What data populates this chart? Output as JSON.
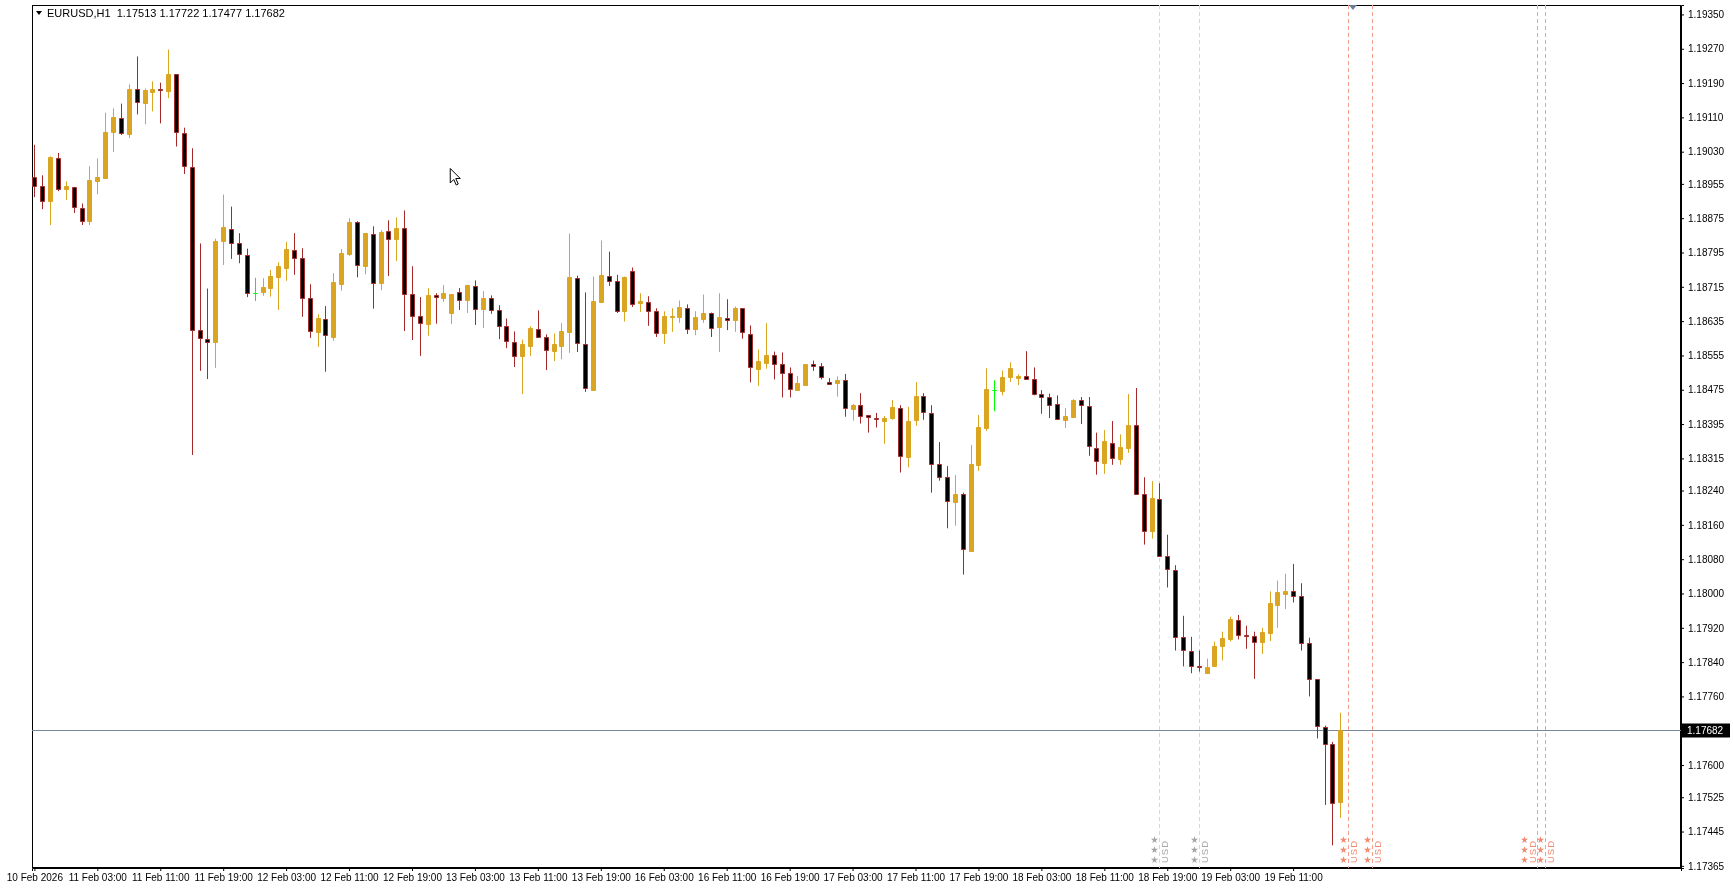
{
  "chart_data": {
    "type": "candlestick",
    "title": "EURUSD,H1  1.17513 1.17722 1.17477 1.17682",
    "categories": [
      "10 Feb 2026",
      null,
      null,
      null,
      null,
      null,
      null,
      null,
      "11 Feb 03:00",
      null,
      null,
      null,
      null,
      null,
      null,
      null,
      "11 Feb 11:00",
      null,
      null,
      null,
      null,
      null,
      null,
      null,
      "11 Feb 19:00",
      null,
      null,
      null,
      null,
      null,
      null,
      null,
      "12 Feb 03:00",
      null,
      null,
      null,
      null,
      null,
      null,
      null,
      "12 Feb 11:00",
      null,
      null,
      null,
      null,
      null,
      null,
      null,
      "12 Feb 19:00",
      null,
      null,
      null,
      null,
      null,
      null,
      null,
      "13 Feb 03:00",
      null,
      null,
      null,
      null,
      null,
      null,
      null,
      "13 Feb 11:00",
      null,
      null,
      null,
      null,
      null,
      null,
      null,
      "13 Feb 19:00",
      null,
      null,
      null,
      null,
      null,
      null,
      null,
      "16 Feb 03:00",
      null,
      null,
      null,
      null,
      null,
      null,
      null,
      "16 Feb 11:00",
      null,
      null,
      null,
      null,
      null,
      null,
      null,
      "16 Feb 19:00",
      null,
      null,
      null,
      null,
      null,
      null,
      null,
      "17 Feb 03:00",
      null,
      null,
      null,
      null,
      null,
      null,
      null,
      "17 Feb 11:00",
      null,
      null,
      null,
      null,
      null,
      null,
      null,
      "17 Feb 19:00",
      null,
      null,
      null,
      null,
      null,
      null,
      null,
      "18 Feb 03:00",
      null,
      null,
      null,
      null,
      null,
      null,
      null,
      "18 Feb 11:00",
      null,
      null,
      null,
      null,
      null,
      null,
      null,
      "18 Feb 19:00",
      null,
      null,
      null,
      null,
      null,
      null,
      null,
      "19 Feb 03:00",
      null,
      null,
      null,
      null,
      null,
      null,
      null,
      "19 Feb 11:00",
      null,
      null,
      null,
      null,
      null,
      null,
      null,
      null,
      null,
      null,
      null,
      null,
      null,
      null,
      null,
      null,
      null,
      null,
      null,
      null,
      null,
      null,
      null,
      null,
      null,
      null,
      null,
      null,
      null,
      null,
      null,
      null,
      null,
      null,
      null,
      null,
      null,
      null,
      null,
      null,
      null,
      null,
      null,
      null,
      null,
      null,
      null,
      null,
      null
    ],
    "ohlc": [
      [
        1.18971,
        1.19046,
        1.18924,
        1.18951
      ],
      [
        1.18951,
        1.18975,
        1.18896,
        1.18916
      ],
      [
        1.18915,
        1.19019,
        1.18859,
        1.19017
      ],
      [
        1.19016,
        1.19027,
        1.18938,
        1.18943
      ],
      [
        1.18943,
        1.18961,
        1.18917,
        1.18951
      ],
      [
        1.18948,
        1.18948,
        1.18887,
        1.18902
      ],
      [
        1.18899,
        1.18909,
        1.18859,
        1.18869
      ],
      [
        1.18868,
        1.18996,
        1.18859,
        1.18963
      ],
      [
        1.18961,
        1.19014,
        1.18931,
        1.1897
      ],
      [
        1.18968,
        1.19121,
        1.18968,
        1.19077
      ],
      [
        1.19075,
        1.19131,
        1.19029,
        1.1911
      ],
      [
        1.19109,
        1.19142,
        1.19069,
        1.19074
      ],
      [
        1.19072,
        1.19187,
        1.19062,
        1.19177
      ],
      [
        1.19176,
        1.19252,
        1.19117,
        1.19145
      ],
      [
        1.19143,
        1.19177,
        1.19094,
        1.19173
      ],
      [
        1.19169,
        1.19194,
        1.19124,
        1.19177
      ],
      [
        1.19176,
        1.19191,
        1.19096,
        1.19174
      ],
      [
        1.19171,
        1.19268,
        1.19155,
        1.19212
      ],
      [
        1.19211,
        1.19211,
        1.19042,
        1.19076
      ],
      [
        1.19074,
        1.19086,
        1.18978,
        1.18996
      ],
      [
        1.18995,
        1.19038,
        1.18323,
        1.18615
      ],
      [
        1.18615,
        1.18816,
        1.18519,
        1.18596
      ],
      [
        1.18594,
        1.18711,
        1.185,
        1.18586
      ],
      [
        1.18586,
        1.18827,
        1.18526,
        1.18821
      ],
      [
        1.18821,
        1.1893,
        1.18766,
        1.18854
      ],
      [
        1.1885,
        1.18902,
        1.1878,
        1.18818
      ],
      [
        1.18816,
        1.1884,
        1.1877,
        1.18791
      ],
      [
        1.1879,
        1.18804,
        1.18691,
        1.18701
      ],
      [
        1.18701,
        1.18736,
        1.18682,
        1.18701
      ],
      [
        1.18703,
        1.18735,
        1.18694,
        1.18714
      ],
      [
        1.18713,
        1.18754,
        1.18692,
        1.1874
      ],
      [
        1.18738,
        1.18772,
        1.18661,
        1.18763
      ],
      [
        1.18759,
        1.1882,
        1.18729,
        1.18803
      ],
      [
        1.188,
        1.1884,
        1.18743,
        1.18781
      ],
      [
        1.18783,
        1.18805,
        1.18645,
        1.1869
      ],
      [
        1.1869,
        1.18721,
        1.18596,
        1.18613
      ],
      [
        1.1861,
        1.18651,
        1.18575,
        1.18642
      ],
      [
        1.18641,
        1.1867,
        1.18517,
        1.18602
      ],
      [
        1.18598,
        1.18747,
        1.18589,
        1.18726
      ],
      [
        1.18722,
        1.18803,
        1.18706,
        1.18793
      ],
      [
        1.18792,
        1.18875,
        1.18787,
        1.18865
      ],
      [
        1.18865,
        1.18868,
        1.18737,
        1.18767
      ],
      [
        1.18763,
        1.1884,
        1.18744,
        1.1884
      ],
      [
        1.18837,
        1.18856,
        1.18664,
        1.18725
      ],
      [
        1.18724,
        1.18847,
        1.18707,
        1.18842
      ],
      [
        1.18844,
        1.1887,
        1.1874,
        1.18827
      ],
      [
        1.18826,
        1.18877,
        1.18775,
        1.18852
      ],
      [
        1.18851,
        1.18893,
        1.18612,
        1.18699
      ],
      [
        1.18699,
        1.18763,
        1.18591,
        1.18646
      ],
      [
        1.18648,
        1.18691,
        1.18554,
        1.1863
      ],
      [
        1.18629,
        1.18712,
        1.18601,
        1.18695
      ],
      [
        1.18695,
        1.187,
        1.18629,
        1.18691
      ],
      [
        1.18689,
        1.18719,
        1.1868,
        1.187
      ],
      [
        1.18654,
        1.18698,
        1.18628,
        1.18698
      ],
      [
        1.18702,
        1.18712,
        1.18661,
        1.18685
      ],
      [
        1.18685,
        1.18719,
        1.18654,
        1.18719
      ],
      [
        1.18718,
        1.1873,
        1.18626,
        1.18664
      ],
      [
        1.18664,
        1.18705,
        1.18619,
        1.18688
      ],
      [
        1.18688,
        1.18695,
        1.18652,
        1.18662
      ],
      [
        1.18662,
        1.18672,
        1.18593,
        1.18624
      ],
      [
        1.18624,
        1.18641,
        1.18572,
        1.18589
      ],
      [
        1.18587,
        1.18611,
        1.18528,
        1.18554
      ],
      [
        1.18554,
        1.18592,
        1.18465,
        1.18581
      ],
      [
        1.18577,
        1.18623,
        1.18554,
        1.1862
      ],
      [
        1.18617,
        1.1866,
        1.18596,
        1.18599
      ],
      [
        1.18599,
        1.18604,
        1.18521,
        1.18568
      ],
      [
        1.18565,
        1.18606,
        1.18542,
        1.18581
      ],
      [
        1.18577,
        1.1863,
        1.18546,
        1.18613
      ],
      [
        1.1861,
        1.18839,
        1.18561,
        1.18737
      ],
      [
        1.18736,
        1.18741,
        1.18563,
        1.18585
      ],
      [
        1.18582,
        1.18702,
        1.1847,
        1.18478
      ],
      [
        1.18475,
        1.18739,
        1.18475,
        1.18683
      ],
      [
        1.18679,
        1.18823,
        1.18677,
        1.18743
      ],
      [
        1.18741,
        1.18797,
        1.18717,
        1.18729
      ],
      [
        1.18729,
        1.18743,
        1.18654,
        1.18659
      ],
      [
        1.18658,
        1.18739,
        1.18634,
        1.18739
      ],
      [
        1.18752,
        1.1876,
        1.18668,
        1.18676
      ],
      [
        1.18677,
        1.187,
        1.18656,
        1.18681
      ],
      [
        1.1868,
        1.18693,
        1.18624,
        1.18659
      ],
      [
        1.18659,
        1.18665,
        1.18598,
        1.18608
      ],
      [
        1.18607,
        1.18658,
        1.18582,
        1.18648
      ],
      [
        1.18645,
        1.18665,
        1.1861,
        1.18648
      ],
      [
        1.18645,
        1.18683,
        1.18631,
        1.18667
      ],
      [
        1.18666,
        1.18674,
        1.18605,
        1.18617
      ],
      [
        1.18617,
        1.18658,
        1.18602,
        1.18644
      ],
      [
        1.1864,
        1.18697,
        1.18631,
        1.18655
      ],
      [
        1.18655,
        1.18655,
        1.18598,
        1.1862
      ],
      [
        1.18621,
        1.187,
        1.18563,
        1.18644
      ],
      [
        1.18643,
        1.18686,
        1.18614,
        1.18638
      ],
      [
        1.18637,
        1.18669,
        1.1861,
        1.18665
      ],
      [
        1.18665,
        1.18665,
        1.18594,
        1.18609
      ],
      [
        1.18606,
        1.18625,
        1.18492,
        1.18527
      ],
      [
        1.18524,
        1.18569,
        1.18484,
        1.18541
      ],
      [
        1.18538,
        1.1863,
        1.18524,
        1.18555
      ],
      [
        1.18555,
        1.18564,
        1.18499,
        1.18534
      ],
      [
        1.18534,
        1.18562,
        1.18457,
        1.18513
      ],
      [
        1.18513,
        1.18527,
        1.18457,
        1.18476
      ],
      [
        1.18475,
        1.18507,
        1.18475,
        1.1849
      ],
      [
        1.18487,
        1.18535,
        1.18484,
        1.18535
      ],
      [
        1.18534,
        1.18543,
        1.18519,
        1.1853
      ],
      [
        1.1853,
        1.18537,
        1.18499,
        1.18504
      ],
      [
        1.18493,
        1.18502,
        1.18489,
        1.18489
      ],
      [
        1.18491,
        1.18506,
        1.18459,
        1.18498
      ],
      [
        1.18497,
        1.18512,
        1.18412,
        1.18432
      ],
      [
        1.18429,
        1.18442,
        1.18403,
        1.18439
      ],
      [
        1.18439,
        1.18467,
        1.18396,
        1.18413
      ],
      [
        1.18415,
        1.18415,
        1.18375,
        1.18411
      ],
      [
        1.18409,
        1.18421,
        1.18387,
        1.18406
      ],
      [
        1.18403,
        1.18414,
        1.18349,
        1.18409
      ],
      [
        1.18408,
        1.18451,
        1.18405,
        1.18434
      ],
      [
        1.18432,
        1.18439,
        1.18282,
        1.1832
      ],
      [
        1.18319,
        1.18435,
        1.18294,
        1.18402
      ],
      [
        1.18405,
        1.18493,
        1.18391,
        1.1846
      ],
      [
        1.1846,
        1.18467,
        1.18405,
        1.18422
      ],
      [
        1.1842,
        1.18439,
        1.18235,
        1.18301
      ],
      [
        1.18301,
        1.18353,
        1.18263,
        1.18271
      ],
      [
        1.18271,
        1.18297,
        1.18152,
        1.18215
      ],
      [
        1.18214,
        1.18276,
        1.18158,
        1.18232
      ],
      [
        1.18231,
        1.18235,
        1.18044,
        1.18103
      ],
      [
        1.181,
        1.18346,
        1.18098,
        1.18302
      ],
      [
        1.183,
        1.18416,
        1.18286,
        1.18388
      ],
      [
        1.18386,
        1.18525,
        1.18379,
        1.18476
      ],
      [
        1.18475,
        1.18497,
        1.18425,
        1.18475
      ],
      [
        1.18472,
        1.1852,
        1.18462,
        1.18504
      ],
      [
        1.18505,
        1.18539,
        1.18493,
        1.18525
      ],
      [
        1.18503,
        1.18511,
        1.18486,
        1.18507
      ],
      [
        1.18508,
        1.18565,
        1.18499,
        1.18499
      ],
      [
        1.18499,
        1.18527,
        1.18462,
        1.18466
      ],
      [
        1.18466,
        1.18474,
        1.18419,
        1.18457
      ],
      [
        1.18457,
        1.18466,
        1.18409,
        1.1844
      ],
      [
        1.18441,
        1.18462,
        1.18406,
        1.18406
      ],
      [
        1.18405,
        1.18432,
        1.18386,
        1.18413
      ],
      [
        1.18412,
        1.18453,
        1.18409,
        1.18451
      ],
      [
        1.18452,
        1.18458,
        1.18395,
        1.1844
      ],
      [
        1.18438,
        1.18458,
        1.18321,
        1.18343
      ],
      [
        1.1834,
        1.18375,
        1.18277,
        1.18308
      ],
      [
        1.18305,
        1.18381,
        1.18279,
        1.18355
      ],
      [
        1.18352,
        1.18402,
        1.183,
        1.18317
      ],
      [
        1.18314,
        1.18371,
        1.183,
        1.18341
      ],
      [
        1.1834,
        1.18465,
        1.18328,
        1.18392
      ],
      [
        1.18392,
        1.18479,
        1.18231,
        1.18231
      ],
      [
        1.18231,
        1.18271,
        1.18114,
        1.18145
      ],
      [
        1.18145,
        1.18262,
        1.18128,
        1.18222
      ],
      [
        1.1822,
        1.18257,
        1.18086,
        1.18088
      ],
      [
        1.18087,
        1.18137,
        1.18014,
        1.18057
      ],
      [
        1.18054,
        1.18066,
        1.17867,
        1.17898
      ],
      [
        1.17898,
        1.17948,
        1.1783,
        1.17868
      ],
      [
        1.17865,
        1.17899,
        1.17814,
        1.17831
      ],
      [
        1.17831,
        1.17867,
        1.17818,
        1.17828
      ],
      [
        1.17814,
        1.17848,
        1.17814,
        1.17828
      ],
      [
        1.1783,
        1.17888,
        1.1783,
        1.17878
      ],
      [
        1.17877,
        1.17911,
        1.17844,
        1.17897
      ],
      [
        1.17895,
        1.17946,
        1.17888,
        1.17941
      ],
      [
        1.17938,
        1.1795,
        1.17893,
        1.17903
      ],
      [
        1.17904,
        1.17925,
        1.17871,
        1.17902
      ],
      [
        1.17902,
        1.17911,
        1.17801,
        1.17888
      ],
      [
        1.17888,
        1.1792,
        1.17859,
        1.17911
      ],
      [
        1.17909,
        1.18005,
        1.17889,
        1.17978
      ],
      [
        1.17974,
        1.1803,
        1.1792,
        1.18004
      ],
      [
        1.17998,
        1.18046,
        1.17964,
        1.18006
      ],
      [
        1.18006,
        1.18069,
        1.17979,
        1.17993
      ],
      [
        1.17994,
        1.18024,
        1.17867,
        1.17884
      ],
      [
        1.17884,
        1.17897,
        1.1776,
        1.178
      ],
      [
        1.178,
        1.178,
        1.17662,
        1.1769
      ],
      [
        1.17689,
        1.17692,
        1.17507,
        1.17649
      ],
      [
        1.17649,
        1.17654,
        1.17413,
        1.17512
      ],
      [
        1.17513,
        1.17722,
        1.17477,
        1.17682
      ],
      null,
      null,
      null,
      null,
      null,
      null,
      null,
      null,
      null,
      null,
      null,
      null,
      null,
      null,
      null,
      null,
      null,
      null,
      null,
      null,
      null,
      null,
      null,
      null,
      null,
      null,
      null,
      null,
      null,
      null,
      null,
      null,
      null,
      null,
      null,
      null,
      null,
      null,
      null,
      null,
      null,
      null,
      null
    ],
    "colors": [
      "#000000",
      "#000000",
      "#daa520",
      "#000000",
      "#daa520",
      "#000000",
      "#000000",
      "#daa520",
      "#daa520",
      "#daa520",
      "#daa520",
      "#000000",
      "#daa520",
      "#000000",
      "#daa520",
      "#daa520",
      "#000000",
      "#daa520",
      "#000000",
      "#000000",
      "#000000",
      "#000000",
      "#000000",
      "#daa520",
      "#daa520",
      "#000000",
      "#000000",
      "#000000",
      "#00ff00",
      "#daa520",
      "#daa520",
      "#daa520",
      "#daa520",
      "#000000",
      "#000000",
      "#000000",
      "#daa520",
      "#000000",
      "#daa520",
      "#daa520",
      "#daa520",
      "#000000",
      "#daa520",
      "#000000",
      "#daa520",
      "#000000",
      "#daa520",
      "#000000",
      "#000000",
      "#000000",
      "#daa520",
      "#000000",
      "#daa520",
      "#daa520",
      "#000000",
      "#daa520",
      "#000000",
      "#daa520",
      "#000000",
      "#000000",
      "#000000",
      "#000000",
      "#daa520",
      "#daa520",
      "#000000",
      "#000000",
      "#daa520",
      "#daa520",
      "#daa520",
      "#000000",
      "#000000",
      "#daa520",
      "#daa520",
      "#000000",
      "#000000",
      "#daa520",
      "#000000",
      "#daa520",
      "#000000",
      "#000000",
      "#daa520",
      "#daa520",
      "#daa520",
      "#000000",
      "#daa520",
      "#daa520",
      "#000000",
      "#daa520",
      "#000000",
      "#daa520",
      "#000000",
      "#000000",
      "#daa520",
      "#daa520",
      "#000000",
      "#000000",
      "#000000",
      "#daa520",
      "#daa520",
      "#000000",
      "#000000",
      "#000000",
      "#daa520",
      "#000000",
      "#daa520",
      "#000000",
      "#000000",
      "#000000",
      "#daa520",
      "#daa520",
      "#000000",
      "#daa520",
      "#daa520",
      "#000000",
      "#000000",
      "#000000",
      "#000000",
      "#daa520",
      "#000000",
      "#daa520",
      "#daa520",
      "#daa520",
      "#00ff00",
      "#daa520",
      "#daa520",
      "#daa520",
      "#000000",
      "#000000",
      "#000000",
      "#000000",
      "#000000",
      "#daa520",
      "#daa520",
      "#000000",
      "#000000",
      "#000000",
      "#daa520",
      "#000000",
      "#daa520",
      "#daa520",
      "#000000",
      "#000000",
      "#daa520",
      "#000000",
      "#000000",
      "#000000",
      "#000000",
      "#000000",
      "#000000",
      "#daa520",
      "#daa520",
      "#daa520",
      "#daa520",
      "#000000",
      "#000000",
      "#000000",
      "#daa520",
      "#daa520",
      "#daa520",
      "#daa520",
      "#000000",
      "#000000",
      "#000000",
      "#000000",
      "#000000",
      "#000000",
      "#daa520",
      null,
      null,
      null,
      null,
      null,
      null,
      null,
      null,
      null,
      null,
      null,
      null,
      null,
      null,
      null,
      null,
      null,
      null,
      null,
      null,
      null,
      null,
      null,
      null,
      null,
      null,
      null,
      null,
      null,
      null,
      null,
      null,
      null,
      null,
      null,
      null,
      null,
      null,
      null,
      null,
      null,
      null,
      null
    ],
    "ylim": [
      1.1736,
      1.19372
    ],
    "yticks": [
      {
        "value": 1.1935,
        "label": "1.19350"
      },
      {
        "value": 1.1927,
        "label": "1.19270"
      },
      {
        "value": 1.1919,
        "label": "1.19190"
      },
      {
        "value": 1.1911,
        "label": "1.19110"
      },
      {
        "value": 1.1903,
        "label": "1.19030"
      },
      {
        "value": 1.18955,
        "label": "1.18955"
      },
      {
        "value": 1.18875,
        "label": "1.18875"
      },
      {
        "value": 1.18795,
        "label": "1.18795"
      },
      {
        "value": 1.18715,
        "label": "1.18715"
      },
      {
        "value": 1.18635,
        "label": "1.18635"
      },
      {
        "value": 1.18555,
        "label": "1.18555"
      },
      {
        "value": 1.18475,
        "label": "1.18475"
      },
      {
        "value": 1.18395,
        "label": "1.18395"
      },
      {
        "value": 1.18315,
        "label": "1.18315"
      },
      {
        "value": 1.1824,
        "label": "1.18240"
      },
      {
        "value": 1.1816,
        "label": "1.18160"
      },
      {
        "value": 1.1808,
        "label": "1.18080"
      },
      {
        "value": 1.18,
        "label": "1.18000"
      },
      {
        "value": 1.1792,
        "label": "1.17920"
      },
      {
        "value": 1.1784,
        "label": "1.17840"
      },
      {
        "value": 1.1776,
        "label": "1.17760"
      },
      {
        "value": 1.176,
        "label": "1.17600"
      },
      {
        "value": 1.17525,
        "label": "1.17525"
      },
      {
        "value": 1.17445,
        "label": "1.17445"
      },
      {
        "value": 1.17365,
        "label": "1.17365"
      }
    ],
    "ref_lines": [
      {
        "axis": "y",
        "value": 1.17682,
        "label": "1.17682",
        "color": "#778899"
      }
    ],
    "annotations": [
      "USD",
      "USD",
      "USD",
      "USD",
      "USD",
      "USD"
    ]
  }
}
